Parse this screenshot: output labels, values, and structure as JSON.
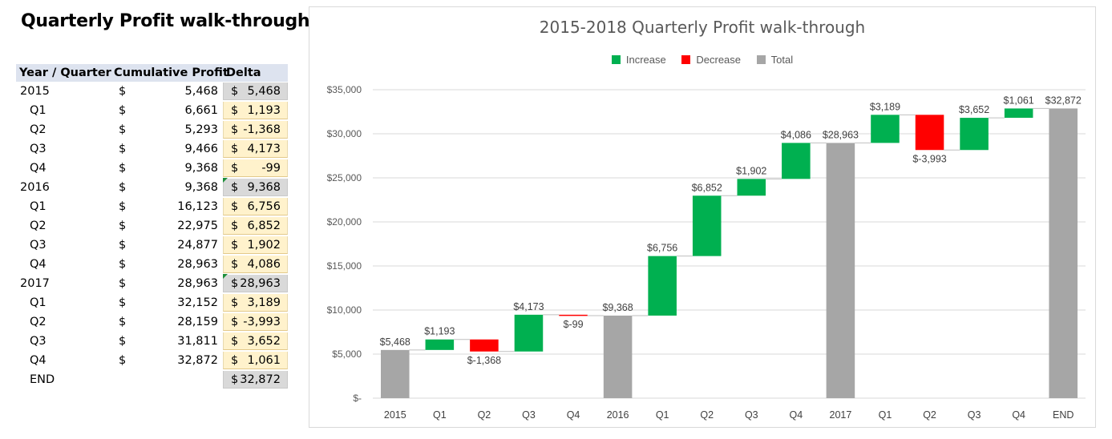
{
  "page_title": "Quarterly Profit walk-through",
  "table": {
    "headers": [
      "Year / Quarter",
      "Cumulative Profit",
      "Delta"
    ],
    "rows": [
      {
        "label": "2015",
        "sub": false,
        "cum": "5,468",
        "delta": "5,468",
        "kind": "total"
      },
      {
        "label": "Q1",
        "sub": true,
        "cum": "6,661",
        "delta": "1,193",
        "kind": "up"
      },
      {
        "label": "Q2",
        "sub": true,
        "cum": "5,293",
        "delta": "-1,368",
        "kind": "up"
      },
      {
        "label": "Q3",
        "sub": true,
        "cum": "9,466",
        "delta": "4,173",
        "kind": "up"
      },
      {
        "label": "Q4",
        "sub": true,
        "cum": "9,368",
        "delta": "-99",
        "kind": "up"
      },
      {
        "label": "2016",
        "sub": false,
        "cum": "9,368",
        "delta": "9,368",
        "kind": "total",
        "flag": true
      },
      {
        "label": "Q1",
        "sub": true,
        "cum": "16,123",
        "delta": "6,756",
        "kind": "up"
      },
      {
        "label": "Q2",
        "sub": true,
        "cum": "22,975",
        "delta": "6,852",
        "kind": "up"
      },
      {
        "label": "Q3",
        "sub": true,
        "cum": "24,877",
        "delta": "1,902",
        "kind": "up"
      },
      {
        "label": "Q4",
        "sub": true,
        "cum": "28,963",
        "delta": "4,086",
        "kind": "up"
      },
      {
        "label": "2017",
        "sub": false,
        "cum": "28,963",
        "delta": "28,963",
        "kind": "total",
        "flag": true
      },
      {
        "label": "Q1",
        "sub": true,
        "cum": "32,152",
        "delta": "3,189",
        "kind": "up"
      },
      {
        "label": "Q2",
        "sub": true,
        "cum": "28,159",
        "delta": "-3,993",
        "kind": "up"
      },
      {
        "label": "Q3",
        "sub": true,
        "cum": "31,811",
        "delta": "3,652",
        "kind": "up"
      },
      {
        "label": "Q4",
        "sub": true,
        "cum": "32,872",
        "delta": "1,061",
        "kind": "up"
      },
      {
        "label": "END",
        "sub": true,
        "cum": "",
        "delta": "32,872",
        "kind": "total"
      }
    ],
    "currency_symbol": "$"
  },
  "colors": {
    "increase": "#00b050",
    "decrease": "#ff0000",
    "total": "#a6a6a6"
  },
  "chart_data": {
    "type": "bar",
    "subtype": "waterfall",
    "title": "2015-2018 Quarterly Profit walk-through",
    "legend": [
      "Increase",
      "Decrease",
      "Total"
    ],
    "legend_position": "top",
    "categories": [
      "2015",
      "Q1",
      "Q2",
      "Q3",
      "Q4",
      "2016",
      "Q1",
      "Q2",
      "Q3",
      "Q4",
      "2017",
      "Q1",
      "Q2",
      "Q3",
      "Q4",
      "END"
    ],
    "values": [
      5468,
      1193,
      -1368,
      4173,
      -99,
      9368,
      6756,
      6852,
      1902,
      4086,
      28963,
      3189,
      -3993,
      3652,
      1061,
      32872
    ],
    "kinds": [
      "total",
      "increase",
      "decrease",
      "increase",
      "decrease",
      "total",
      "increase",
      "increase",
      "increase",
      "increase",
      "total",
      "increase",
      "decrease",
      "increase",
      "increase",
      "total"
    ],
    "data_labels": [
      "$5,468",
      "$1,193",
      "$-1,368",
      "$4,173",
      "$-99",
      "$9,368",
      "$6,756",
      "$6,852",
      "$1,902",
      "$4,086",
      "$28,963",
      "$3,189",
      "$-3,993",
      "$3,652",
      "$1,061",
      "$32,872"
    ],
    "ylim": [
      0,
      35000
    ],
    "y_ticks": [
      0,
      5000,
      10000,
      15000,
      20000,
      25000,
      30000,
      35000
    ],
    "y_tick_labels": [
      "$-",
      "$5,000",
      "$10,000",
      "$15,000",
      "$20,000",
      "$25,000",
      "$30,000",
      "$35,000"
    ],
    "grid": true,
    "xlabel": "",
    "ylabel": ""
  }
}
